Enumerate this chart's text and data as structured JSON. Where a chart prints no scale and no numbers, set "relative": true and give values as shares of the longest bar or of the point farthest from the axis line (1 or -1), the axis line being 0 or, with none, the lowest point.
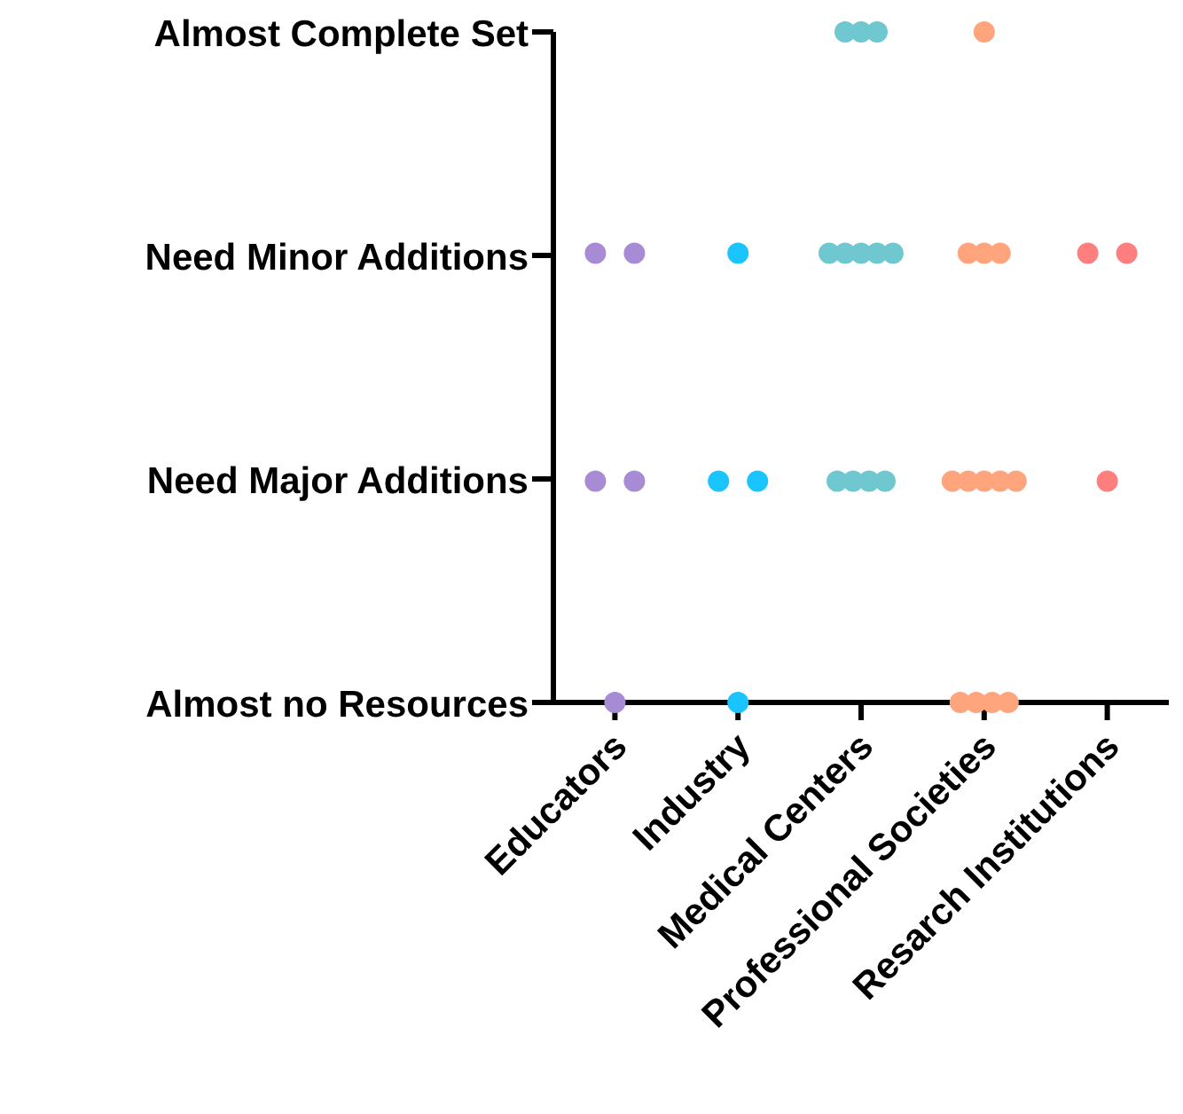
{
  "chart_data": {
    "type": "scatter",
    "relative": true,
    "categories": [
      "Educators",
      "Industry",
      "Medical Centers",
      "Professional Societies",
      "Resarch Institutions"
    ],
    "annotations": [
      "Almost Complete Set",
      "Need Minor Additions",
      "Need Major Additions",
      "Almost no Resources"
    ],
    "marker": "circle",
    "grid": false,
    "legend": false,
    "series": [
      {
        "color": "#a78bd5",
        "x": [
          "Educators",
          "Educators",
          "Educators",
          "Educators",
          "Educators"
        ],
        "values": [
          0.67,
          0.67,
          0.33,
          0.33,
          0
        ]
      },
      {
        "color": "#1ac4ff",
        "x": [
          "Industry",
          "Industry",
          "Industry",
          "Industry"
        ],
        "values": [
          0.67,
          0.33,
          0.33,
          0
        ]
      },
      {
        "color": "#6fc8d0",
        "x": [
          "Medical Centers",
          "Medical Centers",
          "Medical Centers",
          "Medical Centers",
          "Medical Centers",
          "Medical Centers",
          "Medical Centers",
          "Medical Centers",
          "Medical Centers",
          "Medical Centers",
          "Medical Centers",
          "Medical Centers"
        ],
        "values": [
          1,
          1,
          1,
          0.67,
          0.67,
          0.67,
          0.67,
          0.67,
          0.33,
          0.33,
          0.33,
          0.33
        ]
      },
      {
        "color": "#ffa57d",
        "x": [
          "Professional Societies",
          "Professional Societies",
          "Professional Societies",
          "Professional Societies",
          "Professional Societies",
          "Professional Societies",
          "Professional Societies",
          "Professional Societies",
          "Professional Societies",
          "Professional Societies",
          "Professional Societies",
          "Professional Societies",
          "Professional Societies"
        ],
        "values": [
          1,
          0.67,
          0.67,
          0.67,
          0.33,
          0.33,
          0.33,
          0.33,
          0.33,
          0,
          0,
          0,
          0
        ]
      },
      {
        "color": "#ff7f7f",
        "x": [
          "Resarch Institutions",
          "Resarch Institutions",
          "Resarch Institutions"
        ],
        "values": [
          0.67,
          0.67,
          0.33
        ]
      }
    ]
  }
}
